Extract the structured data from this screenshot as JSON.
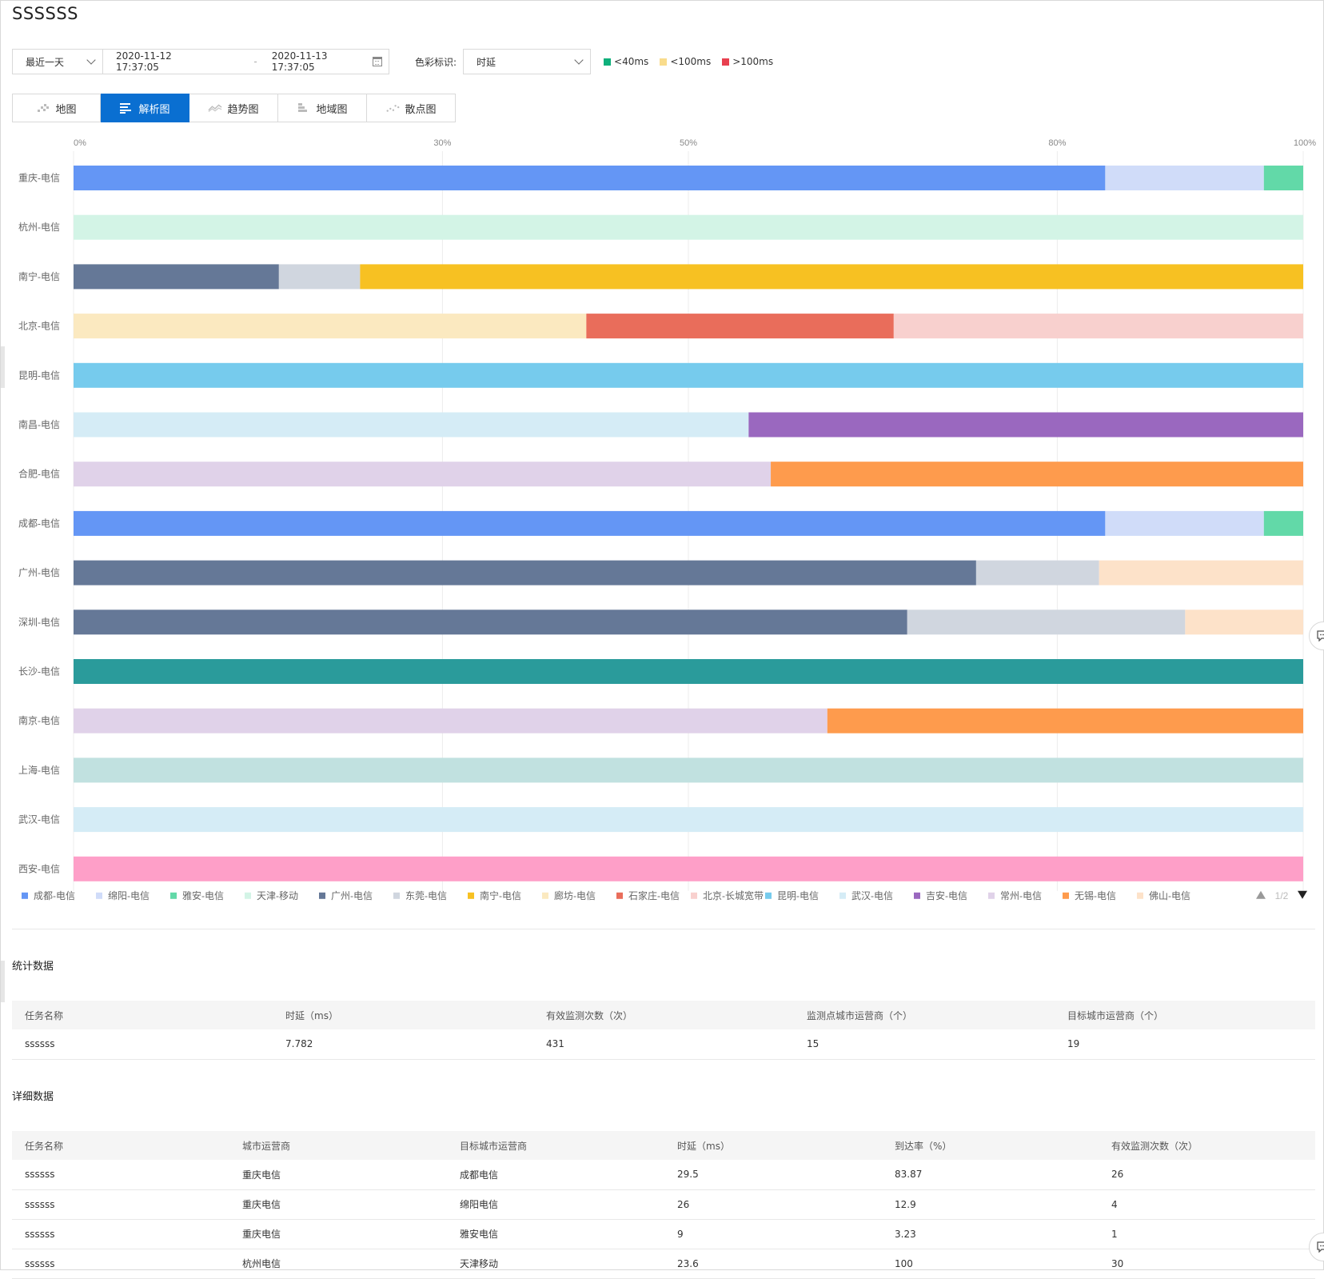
{
  "page": {
    "title": "SSSSSS"
  },
  "controls": {
    "range_value": "最近一天",
    "date_start": "2020-11-12 17:37:05",
    "date_sep": "-",
    "date_end": "2020-11-13 17:37:05",
    "color_label": "色彩标识:",
    "metric_value": "时延",
    "thresholds": [
      {
        "label": "<40ms",
        "color": "#0fb07b"
      },
      {
        "label": "<100ms",
        "color": "#f9dc8c"
      },
      {
        "label": ">100ms",
        "color": "#e8404f"
      }
    ]
  },
  "tabs": [
    {
      "label": "地图",
      "icon": "map-icon",
      "active": false
    },
    {
      "label": "解析图",
      "icon": "bar-analysis-icon",
      "active": true
    },
    {
      "label": "趋势图",
      "icon": "trend-icon",
      "active": false
    },
    {
      "label": "地域图",
      "icon": "region-icon",
      "active": false
    },
    {
      "label": "散点图",
      "icon": "scatter-icon",
      "active": false
    }
  ],
  "chart_data": {
    "type": "bar",
    "orientation": "horizontal-stacked-percent",
    "xlim": [
      0,
      100
    ],
    "x_ticks": [
      "0%",
      "30%",
      "50%",
      "80%",
      "100%"
    ],
    "x_tick_values": [
      0,
      30,
      50,
      80,
      100
    ],
    "categories": [
      "重庆-电信",
      "杭州-电信",
      "南宁-电信",
      "北京-电信",
      "昆明-电信",
      "南昌-电信",
      "合肥-电信",
      "成都-电信",
      "广州-电信",
      "深圳-电信",
      "长沙-电信",
      "南京-电信",
      "上海-电信",
      "武汉-电信",
      "西安-电信"
    ],
    "rows": [
      [
        {
          "color": "#6496f5",
          "value": 83.9
        },
        {
          "color": "#d0dcf9",
          "value": 12.9
        },
        {
          "color": "#62d9a8",
          "value": 3.2
        }
      ],
      [
        {
          "color": "#d3f4e6",
          "value": 100
        }
      ],
      [
        {
          "color": "#657897",
          "value": 16.7
        },
        {
          "color": "#d0d6df",
          "value": 6.6
        },
        {
          "color": "#f7c122",
          "value": 76.7
        }
      ],
      [
        {
          "color": "#fbe9c0",
          "value": 41.7
        },
        {
          "color": "#e96d5b",
          "value": 25.0
        },
        {
          "color": "#f8d0ce",
          "value": 33.3
        }
      ],
      [
        {
          "color": "#76cbed",
          "value": 100
        }
      ],
      [
        {
          "color": "#d5ecf6",
          "value": 54.9
        },
        {
          "color": "#9a68bf",
          "value": 45.1
        }
      ],
      [
        {
          "color": "#e0d2e9",
          "value": 56.7
        },
        {
          "color": "#fe9b4d",
          "value": 43.3
        }
      ],
      [
        {
          "color": "#6496f5",
          "value": 83.9
        },
        {
          "color": "#d0dcf9",
          "value": 12.9
        },
        {
          "color": "#62d9a8",
          "value": 3.2
        }
      ],
      [
        {
          "color": "#657897",
          "value": 73.4
        },
        {
          "color": "#d0d6df",
          "value": 10.0
        },
        {
          "color": "#fde2c9",
          "value": 16.6
        }
      ],
      [
        {
          "color": "#657897",
          "value": 67.8
        },
        {
          "color": "#d0d6df",
          "value": 22.6
        },
        {
          "color": "#fde2c9",
          "value": 9.6
        }
      ],
      [
        {
          "color": "#2a9b9b",
          "value": 100
        }
      ],
      [
        {
          "color": "#e0d2e9",
          "value": 61.3
        },
        {
          "color": "#fe9b4d",
          "value": 38.7
        }
      ],
      [
        {
          "color": "#c1e1e0",
          "value": 100
        }
      ],
      [
        {
          "color": "#d5ecf6",
          "value": 100
        }
      ],
      [
        {
          "color": "#fe9fc8",
          "value": 100
        }
      ]
    ],
    "legend": [
      {
        "name": "成都-电信",
        "color": "#6496f5"
      },
      {
        "name": "绵阳-电信",
        "color": "#d0dcf9"
      },
      {
        "name": "雅安-电信",
        "color": "#62d9a8"
      },
      {
        "name": "天津-移动",
        "color": "#d3f4e6"
      },
      {
        "name": "广州-电信",
        "color": "#657897"
      },
      {
        "name": "东莞-电信",
        "color": "#d0d6df"
      },
      {
        "name": "南宁-电信",
        "color": "#f7c122"
      },
      {
        "name": "廊坊-电信",
        "color": "#fbe9c0"
      },
      {
        "name": "石家庄-电信",
        "color": "#e96d5b"
      },
      {
        "name": "北京-长城宽带",
        "color": "#f8d0ce"
      },
      {
        "name": "昆明-电信",
        "color": "#76cbed"
      },
      {
        "name": "武汉-电信",
        "color": "#d5ecf6"
      },
      {
        "name": "吉安-电信",
        "color": "#9a68bf"
      },
      {
        "name": "常州-电信",
        "color": "#e0d2e9"
      },
      {
        "name": "无锡-电信",
        "color": "#fe9b4d"
      },
      {
        "name": "佛山-电信",
        "color": "#fde2c9"
      }
    ],
    "legend_page": "1/2",
    "grid": true
  },
  "stats": {
    "title": "统计数据",
    "headers": [
      "任务名称",
      "时延（ms）",
      "有效监测次数（次）",
      "监测点城市运营商（个）",
      "目标城市运营商（个）"
    ],
    "rows": [
      [
        "ssssss",
        "7.782",
        "431",
        "15",
        "19"
      ]
    ]
  },
  "detail": {
    "title": "详细数据",
    "headers": [
      "任务名称",
      "城市运营商",
      "目标城市运营商",
      "时延（ms）",
      "到达率（%）",
      "有效监测次数（次）"
    ],
    "rows": [
      [
        "ssssss",
        "重庆电信",
        "成都电信",
        "29.5",
        "83.87",
        "26"
      ],
      [
        "ssssss",
        "重庆电信",
        "绵阳电信",
        "26",
        "12.9",
        "4"
      ],
      [
        "ssssss",
        "重庆电信",
        "雅安电信",
        "9",
        "3.23",
        "1"
      ],
      [
        "ssssss",
        "杭州电信",
        "天津移动",
        "23.6",
        "100",
        "30"
      ]
    ]
  }
}
